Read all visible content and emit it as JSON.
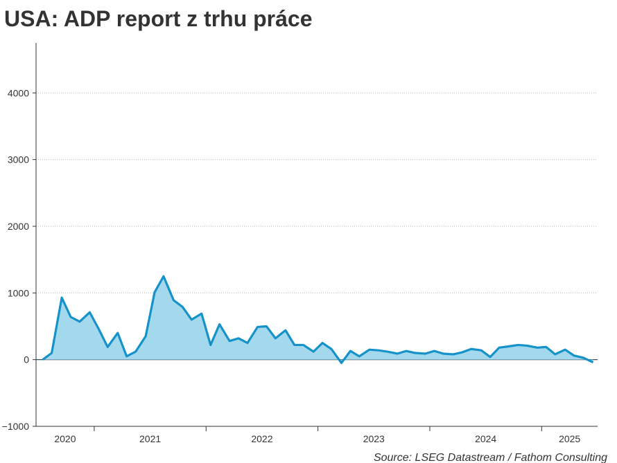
{
  "chart_data": {
    "type": "area",
    "title": "USA: ADP report z trhu práce",
    "source": "Source: LSEG Datastream / Fathom Consulting",
    "x": [
      2020.54,
      2020.62,
      2020.71,
      2020.79,
      2020.87,
      2020.96,
      2021.04,
      2021.12,
      2021.21,
      2021.29,
      2021.37,
      2021.46,
      2021.54,
      2021.62,
      2021.71,
      2021.79,
      2021.87,
      2021.96,
      2022.04,
      2022.12,
      2022.21,
      2022.29,
      2022.37,
      2022.46,
      2022.54,
      2022.62,
      2022.71,
      2022.79,
      2022.87,
      2022.96,
      2023.04,
      2023.12,
      2023.21,
      2023.29,
      2023.37,
      2023.46,
      2023.54,
      2023.62,
      2023.71,
      2023.79,
      2023.87,
      2023.96,
      2024.04,
      2024.12,
      2024.21,
      2024.29,
      2024.37,
      2024.46,
      2024.54,
      2024.62,
      2024.71,
      2024.79,
      2024.87,
      2024.96,
      2025.04,
      2025.12,
      2025.21,
      2025.29,
      2025.37,
      2025.46
    ],
    "series": [
      {
        "color": "#1592c9",
        "fill": "#a4d8ec",
        "values": [
          0,
          100,
          930,
          640,
          570,
          710,
          460,
          190,
          400,
          50,
          120,
          350,
          1010,
          1250,
          890,
          790,
          600,
          690,
          220,
          530,
          280,
          320,
          250,
          490,
          500,
          320,
          440,
          220,
          220,
          120,
          250,
          160,
          -50,
          130,
          50,
          150,
          140,
          120,
          90,
          130,
          100,
          90,
          130,
          90,
          80,
          110,
          160,
          140,
          40,
          180,
          200,
          220,
          210,
          180,
          190,
          80,
          150,
          60,
          30,
          -40
        ]
      }
    ],
    "xlim": [
      2020.48,
      2025.5
    ],
    "xticks": [
      {
        "value": 2020,
        "label": "2020"
      },
      {
        "value": 2021,
        "label": "2021"
      },
      {
        "value": 2022,
        "label": "2022"
      },
      {
        "value": 2023,
        "label": "2023"
      },
      {
        "value": 2024,
        "label": "2024"
      },
      {
        "value": 2025,
        "label": "2025"
      }
    ],
    "ylim": [
      -1000,
      4750
    ],
    "yticks": [
      {
        "value": -1000,
        "label": "−1000"
      },
      0,
      1000,
      2000,
      3000,
      4000
    ],
    "grid": true
  }
}
